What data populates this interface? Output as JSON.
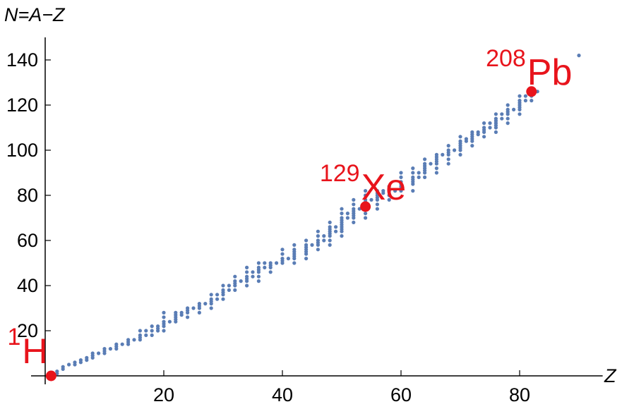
{
  "chart_data": {
    "type": "scatter",
    "ylabel": "N=A−Z",
    "xlabel": "Z",
    "xlim": [
      0,
      94
    ],
    "ylim": [
      0,
      150
    ],
    "xticks": [
      20,
      40,
      60,
      80
    ],
    "yticks": [
      20,
      40,
      60,
      80,
      100,
      120,
      140
    ],
    "color": "#5a7db5",
    "x": [
      1,
      2,
      2,
      3,
      3,
      4,
      5,
      5,
      6,
      6,
      7,
      7,
      8,
      8,
      8,
      9,
      10,
      10,
      10,
      11,
      12,
      12,
      12,
      13,
      14,
      14,
      14,
      15,
      16,
      16,
      16,
      16,
      17,
      17,
      18,
      18,
      18,
      19,
      19,
      19,
      20,
      20,
      20,
      20,
      20,
      20,
      21,
      22,
      22,
      22,
      22,
      22,
      23,
      23,
      24,
      24,
      24,
      24,
      25,
      26,
      26,
      26,
      26,
      27,
      28,
      28,
      28,
      28,
      28,
      29,
      29,
      30,
      30,
      30,
      30,
      30,
      31,
      31,
      32,
      32,
      32,
      32,
      32,
      33,
      34,
      34,
      34,
      34,
      34,
      34,
      35,
      35,
      36,
      36,
      36,
      36,
      36,
      36,
      37,
      37,
      38,
      38,
      38,
      38,
      39,
      40,
      40,
      40,
      40,
      40,
      41,
      42,
      42,
      42,
      42,
      42,
      42,
      42,
      44,
      44,
      44,
      44,
      44,
      44,
      44,
      45,
      46,
      46,
      46,
      46,
      46,
      46,
      47,
      47,
      48,
      48,
      48,
      48,
      48,
      48,
      48,
      48,
      49,
      49,
      50,
      50,
      50,
      50,
      50,
      50,
      50,
      50,
      50,
      50,
      51,
      51,
      52,
      52,
      52,
      52,
      52,
      52,
      52,
      52,
      53,
      54,
      54,
      54,
      54,
      54,
      54,
      54,
      54,
      55,
      56,
      56,
      56,
      56,
      56,
      56,
      56,
      57,
      57,
      58,
      58,
      58,
      58,
      59,
      60,
      60,
      60,
      60,
      60,
      60,
      60,
      62,
      62,
      62,
      62,
      62,
      62,
      62,
      63,
      63,
      64,
      64,
      64,
      64,
      64,
      64,
      64,
      65,
      66,
      66,
      66,
      66,
      66,
      66,
      66,
      67,
      68,
      68,
      68,
      68,
      68,
      68,
      69,
      70,
      70,
      70,
      70,
      70,
      70,
      70,
      71,
      71,
      72,
      72,
      72,
      72,
      72,
      72,
      73,
      73,
      74,
      74,
      74,
      74,
      74,
      75,
      75,
      76,
      76,
      76,
      76,
      76,
      76,
      76,
      77,
      77,
      78,
      78,
      78,
      78,
      78,
      78,
      79,
      80,
      80,
      80,
      80,
      80,
      80,
      80,
      81,
      81,
      82,
      82,
      82,
      83,
      90
    ],
    "values": [
      1,
      1,
      2,
      3,
      4,
      5,
      5,
      6,
      6,
      7,
      7,
      8,
      8,
      9,
      10,
      10,
      10,
      11,
      12,
      12,
      12,
      13,
      14,
      14,
      14,
      15,
      16,
      16,
      16,
      17,
      18,
      20,
      18,
      20,
      18,
      20,
      22,
      20,
      21,
      22,
      20,
      22,
      23,
      24,
      26,
      28,
      24,
      24,
      25,
      26,
      27,
      28,
      27,
      28,
      26,
      28,
      29,
      30,
      30,
      28,
      30,
      31,
      32,
      32,
      30,
      32,
      33,
      34,
      36,
      34,
      36,
      34,
      36,
      37,
      38,
      40,
      38,
      40,
      38,
      40,
      41,
      42,
      44,
      42,
      40,
      42,
      43,
      44,
      46,
      48,
      44,
      46,
      42,
      44,
      46,
      47,
      48,
      50,
      48,
      50,
      46,
      48,
      49,
      50,
      50,
      50,
      51,
      52,
      54,
      56,
      52,
      50,
      52,
      53,
      54,
      55,
      56,
      58,
      52,
      54,
      55,
      56,
      57,
      58,
      60,
      58,
      56,
      58,
      59,
      60,
      62,
      64,
      60,
      62,
      58,
      60,
      62,
      63,
      64,
      65,
      66,
      68,
      64,
      66,
      62,
      64,
      65,
      66,
      67,
      68,
      69,
      70,
      72,
      74,
      70,
      72,
      68,
      70,
      71,
      72,
      73,
      74,
      76,
      78,
      74,
      70,
      72,
      74,
      76,
      77,
      78,
      80,
      82,
      78,
      74,
      76,
      78,
      79,
      80,
      81,
      82,
      81,
      82,
      78,
      80,
      82,
      84,
      82,
      82,
      83,
      84,
      85,
      86,
      88,
      90,
      82,
      85,
      86,
      87,
      88,
      90,
      92,
      88,
      90,
      88,
      90,
      91,
      92,
      93,
      94,
      96,
      94,
      90,
      92,
      94,
      95,
      96,
      97,
      98,
      98,
      94,
      96,
      98,
      99,
      100,
      102,
      100,
      98,
      100,
      101,
      102,
      103,
      104,
      106,
      104,
      105,
      102,
      104,
      105,
      106,
      107,
      108,
      107,
      108,
      106,
      108,
      109,
      110,
      112,
      110,
      112,
      108,
      110,
      111,
      112,
      113,
      114,
      116,
      114,
      116,
      112,
      114,
      116,
      117,
      118,
      120,
      118,
      116,
      118,
      119,
      120,
      121,
      122,
      124,
      122,
      124,
      122,
      124,
      125,
      126,
      142
    ],
    "highlights": {
      "color": "#e8141c",
      "x": [
        1,
        54,
        82
      ],
      "values": [
        0,
        75,
        126
      ],
      "mass": [
        "1",
        "129",
        "208"
      ],
      "symbol": [
        "H",
        "Xe",
        "Pb"
      ]
    }
  }
}
